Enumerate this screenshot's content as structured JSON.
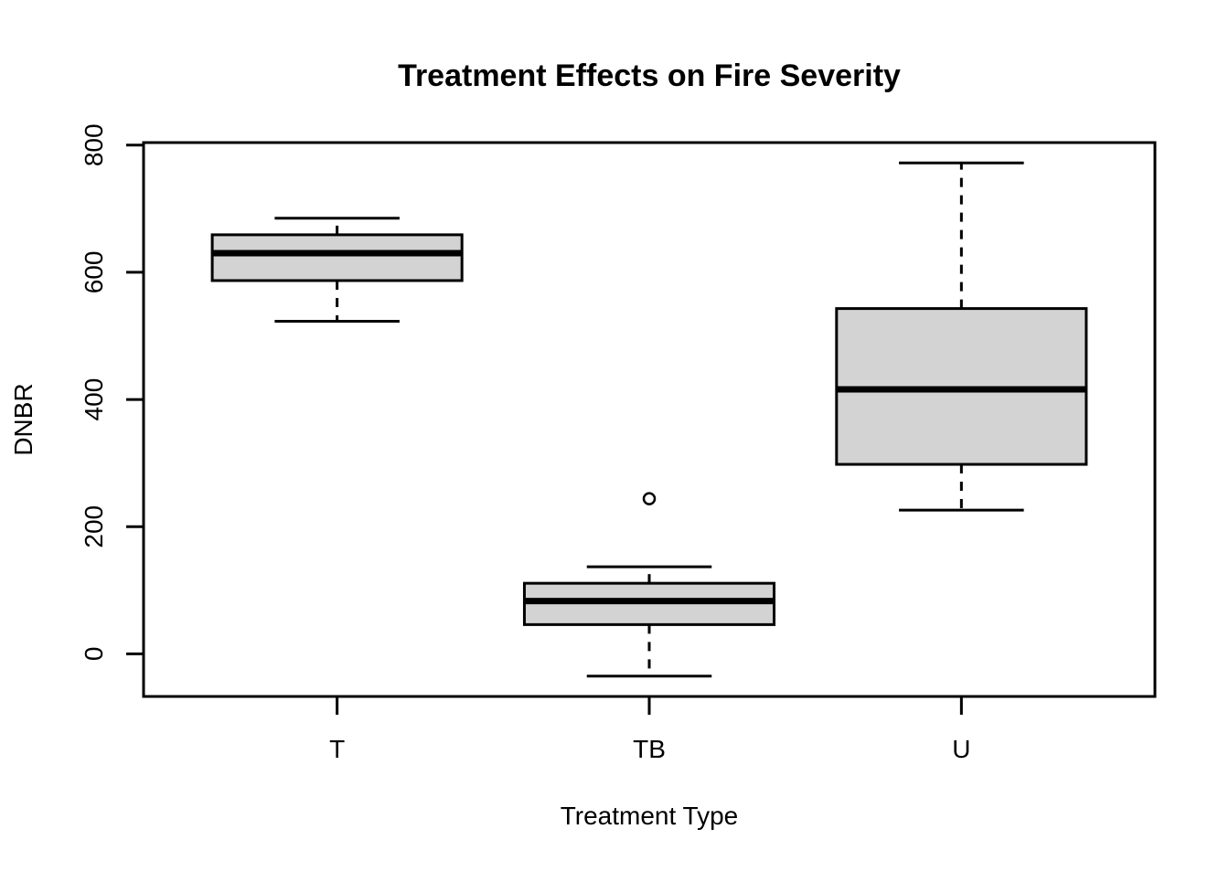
{
  "title": "Treatment Effects on Fire Severity",
  "axes": {
    "x_label": "Treatment Type",
    "y_label": "DNBR",
    "x_tick_labels": [
      "T",
      "TB",
      "U"
    ],
    "y_tick_labels": [
      "0",
      "200",
      "400",
      "600",
      "800"
    ]
  },
  "colors": {
    "background": "#FFFFFF",
    "line": "#000000",
    "box_fill": "#D3D3D3"
  },
  "chart_data": {
    "type": "boxplot",
    "title": "Treatment Effects on Fire Severity",
    "xlabel": "Treatment Type",
    "ylabel": "DNBR",
    "categories": [
      "T",
      "TB",
      "U"
    ],
    "y_ticks": [
      0,
      200,
      400,
      600,
      800
    ],
    "ylim": [
      -67,
      804
    ],
    "grid": false,
    "legend": false,
    "box_width_ratio": 0.8,
    "series": [
      {
        "name": "T",
        "whisker_low": 523,
        "q1": 587,
        "median": 630,
        "q3": 659,
        "whisker_high": 685,
        "outliers": []
      },
      {
        "name": "TB",
        "whisker_low": -35,
        "q1": 46,
        "median": 83,
        "q3": 111,
        "whisker_high": 137,
        "outliers": [
          244
        ]
      },
      {
        "name": "U",
        "whisker_low": 226,
        "q1": 298,
        "median": 416,
        "q3": 543,
        "whisker_high": 772,
        "outliers": []
      }
    ]
  }
}
